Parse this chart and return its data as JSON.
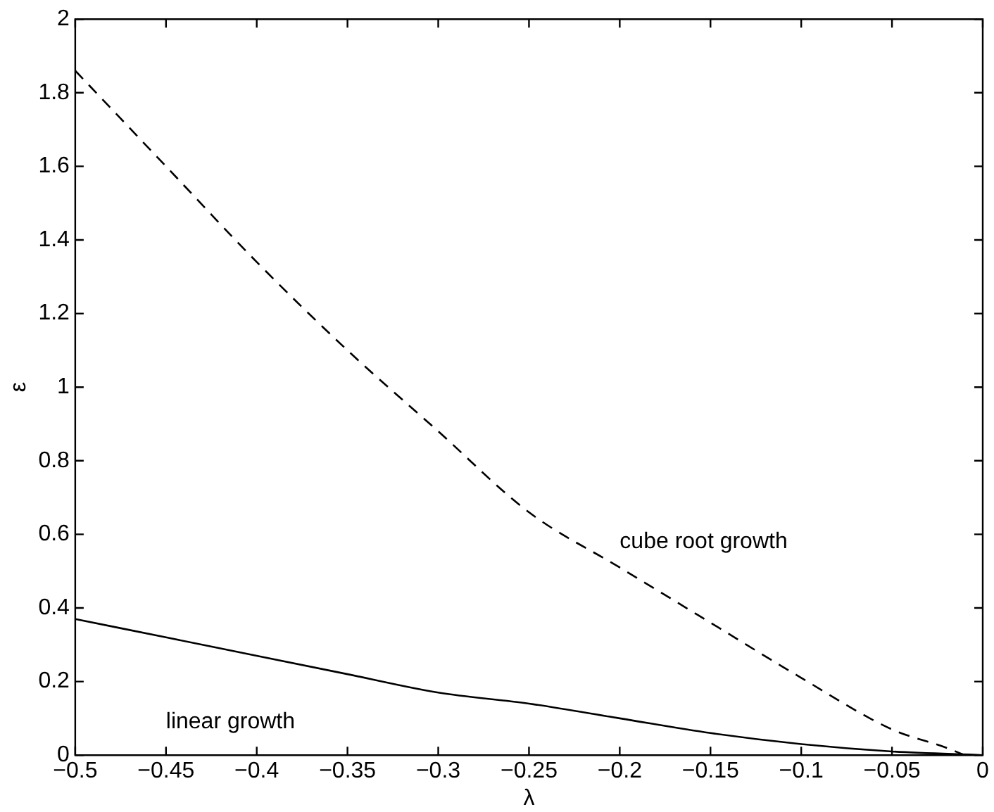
{
  "chart_data": {
    "type": "line",
    "xlabel": "λ",
    "ylabel": "ε",
    "xlim": [
      -0.5,
      0
    ],
    "ylim": [
      0,
      2
    ],
    "xticks": [
      {
        "value": -0.5,
        "label": "−0.5"
      },
      {
        "value": -0.45,
        "label": "−0.45"
      },
      {
        "value": -0.4,
        "label": "−0.4"
      },
      {
        "value": -0.35,
        "label": "−0.35"
      },
      {
        "value": -0.3,
        "label": "−0.3"
      },
      {
        "value": -0.25,
        "label": "−0.25"
      },
      {
        "value": -0.2,
        "label": "−0.2"
      },
      {
        "value": -0.15,
        "label": "−0.15"
      },
      {
        "value": -0.1,
        "label": "−0.1"
      },
      {
        "value": -0.05,
        "label": "−0.05"
      },
      0
    ],
    "yticks": [
      0,
      0.2,
      0.4,
      0.6,
      0.8,
      1,
      1.2,
      1.4,
      1.6,
      1.8,
      2
    ],
    "grid": false,
    "legend": false,
    "marker": "none",
    "series": [
      {
        "color": "#000000",
        "line_style": "dashed",
        "x": [
          -0.5,
          -0.45,
          -0.4,
          -0.35,
          -0.3,
          -0.25,
          -0.2,
          -0.15,
          -0.1,
          -0.05,
          -0.02,
          -0.01
        ],
        "values": [
          1.86,
          1.6,
          1.34,
          1.1,
          0.88,
          0.66,
          0.51,
          0.36,
          0.21,
          0.07,
          0.02,
          0
        ]
      },
      {
        "color": "#000000",
        "line_style": "solid",
        "x": [
          -0.5,
          -0.45,
          -0.4,
          -0.35,
          -0.3,
          -0.25,
          -0.2,
          -0.15,
          -0.1,
          -0.05,
          0
        ],
        "values": [
          0.37,
          0.32,
          0.27,
          0.22,
          0.17,
          0.14,
          0.1,
          0.06,
          0.03,
          0.01,
          0
        ]
      }
    ],
    "annotations": [
      "cube root growth",
      "linear growth"
    ]
  }
}
